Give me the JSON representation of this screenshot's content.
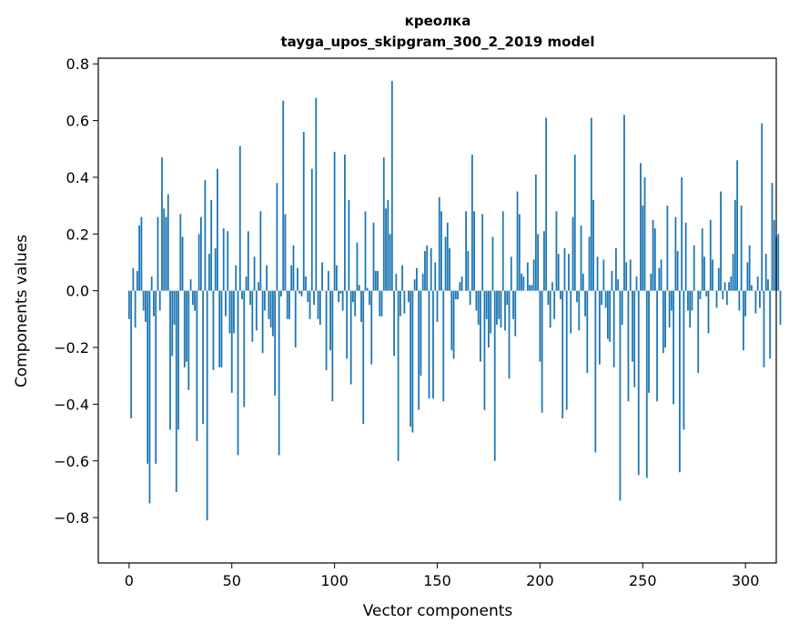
{
  "chart_data": {
    "type": "bar",
    "title": "креолка",
    "subtitle": "tayga_upos_skipgram_300_2_2019 model",
    "xlabel": "Vector components",
    "ylabel": "Components values",
    "xlim": [
      -15,
      315
    ],
    "ylim": [
      -0.96,
      0.82
    ],
    "xticks": [
      0,
      50,
      100,
      150,
      200,
      250,
      300
    ],
    "xtick_labels": [
      "0",
      "50",
      "100",
      "150",
      "200",
      "250",
      "300"
    ],
    "yticks": [
      -0.8,
      -0.6,
      -0.4,
      -0.2,
      0.0,
      0.2,
      0.4,
      0.6,
      0.8
    ],
    "ytick_labels": [
      "−0.8",
      "−0.6",
      "−0.4",
      "−0.2",
      "0.0",
      "0.2",
      "0.4",
      "0.6",
      "0.8"
    ],
    "grid": false,
    "bar_color": "#1f77b4",
    "values": [
      -0.1,
      -0.45,
      0.08,
      -0.13,
      0.07,
      0.23,
      0.26,
      -0.07,
      -0.11,
      -0.61,
      -0.75,
      0.05,
      -0.09,
      -0.61,
      0.26,
      -0.07,
      0.47,
      0.29,
      0.26,
      0.34,
      -0.49,
      -0.23,
      -0.12,
      -0.71,
      -0.49,
      0.27,
      0.19,
      -0.27,
      -0.25,
      -0.35,
      0.04,
      -0.05,
      -0.07,
      -0.53,
      0.2,
      0.26,
      -0.47,
      0.39,
      -0.81,
      0.13,
      0.32,
      -0.28,
      0.15,
      0.43,
      -0.27,
      -0.27,
      0.22,
      -0.09,
      0.21,
      -0.15,
      -0.36,
      -0.15,
      0.09,
      -0.58,
      0.51,
      -0.03,
      -0.41,
      0.05,
      0.21,
      -0.05,
      -0.18,
      0.12,
      -0.14,
      0.03,
      0.28,
      -0.22,
      -0.07,
      0.09,
      -0.1,
      -0.13,
      -0.16,
      -0.37,
      0.38,
      -0.58,
      -0.02,
      0.67,
      0.27,
      -0.1,
      -0.1,
      0.09,
      0.16,
      -0.2,
      0.08,
      -0.01,
      -0.02,
      0.56,
      0.05,
      -0.04,
      -0.1,
      0.43,
      -0.05,
      0.68,
      -0.1,
      -0.12,
      0.1,
      0.0,
      -0.28,
      0.07,
      -0.21,
      -0.39,
      0.49,
      0.09,
      -0.04,
      -0.01,
      -0.07,
      0.48,
      -0.24,
      0.32,
      -0.33,
      -0.04,
      -0.09,
      0.17,
      0.02,
      -0.11,
      -0.47,
      0.28,
      0.01,
      -0.05,
      -0.26,
      0.24,
      0.07,
      0.07,
      -0.09,
      -0.09,
      0.47,
      0.29,
      0.32,
      0.2,
      0.74,
      -0.23,
      0.06,
      -0.6,
      -0.09,
      0.09,
      -0.08,
      0.0,
      -0.04,
      -0.48,
      -0.5,
      0.04,
      0.08,
      -0.42,
      -0.3,
      0.06,
      0.14,
      0.16,
      -0.38,
      0.15,
      -0.38,
      0.1,
      -0.11,
      0.33,
      0.28,
      -0.39,
      0.19,
      0.24,
      0.15,
      -0.21,
      -0.24,
      -0.03,
      -0.03,
      0.03,
      0.05,
      0.0,
      0.28,
      0.14,
      -0.05,
      0.48,
      0.28,
      -0.07,
      -0.12,
      -0.25,
      0.27,
      -0.42,
      -0.1,
      -0.2,
      -0.15,
      0.19,
      -0.6,
      -0.12,
      -0.1,
      -0.13,
      0.28,
      -0.14,
      -0.05,
      -0.31,
      0.12,
      -0.1,
      -0.16,
      0.35,
      0.27,
      0.06,
      0.05,
      0.0,
      0.1,
      0.02,
      0.02,
      0.11,
      0.41,
      0.2,
      -0.25,
      -0.43,
      0.21,
      0.61,
      -0.05,
      -0.13,
      0.03,
      -0.1,
      0.28,
      0.13,
      -0.03,
      -0.45,
      0.15,
      -0.42,
      0.13,
      -0.15,
      0.26,
      0.48,
      -0.04,
      -0.14,
      0.23,
      0.06,
      -0.09,
      -0.29,
      0.19,
      0.61,
      0.32,
      -0.57,
      0.12,
      -0.26,
      -0.05,
      0.11,
      -0.06,
      -0.17,
      -0.18,
      0.07,
      -0.27,
      0.15,
      0.04,
      -0.74,
      -0.12,
      0.62,
      0.1,
      -0.39,
      0.11,
      -0.25,
      -0.34,
      0.05,
      -0.65,
      0.45,
      0.3,
      0.4,
      -0.66,
      -0.36,
      0.06,
      0.25,
      0.22,
      -0.39,
      0.08,
      0.11,
      -0.22,
      -0.2,
      0.3,
      -0.13,
      -0.07,
      -0.4,
      0.26,
      0.14,
      -0.64,
      0.4,
      -0.49,
      0.24,
      -0.07,
      -0.13,
      -0.07,
      0.16,
      0.0,
      -0.29,
      -0.03,
      0.22,
      0.12,
      -0.02,
      -0.15,
      0.25,
      0.11,
      0.0,
      -0.06,
      0.08,
      0.35,
      -0.03,
      0.03,
      -0.05,
      0.03,
      0.05,
      0.13,
      0.32,
      0.46,
      -0.07,
      0.3,
      -0.21,
      -0.09,
      0.1,
      0.16,
      0.02,
      0.0,
      -0.08,
      0.05,
      -0.06,
      0.59,
      -0.27,
      0.13,
      0.04,
      -0.24,
      0.38,
      0.25,
      0.19,
      0.2,
      -0.12
    ]
  }
}
